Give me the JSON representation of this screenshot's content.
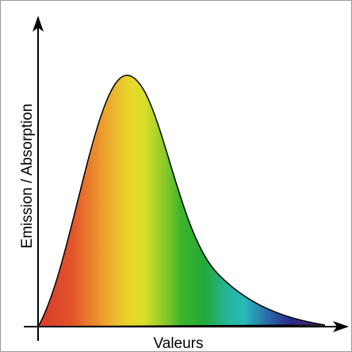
{
  "diagram": {
    "x_axis_label": "Valeurs",
    "y_axis_label": "Emission / Absorption"
  }
}
